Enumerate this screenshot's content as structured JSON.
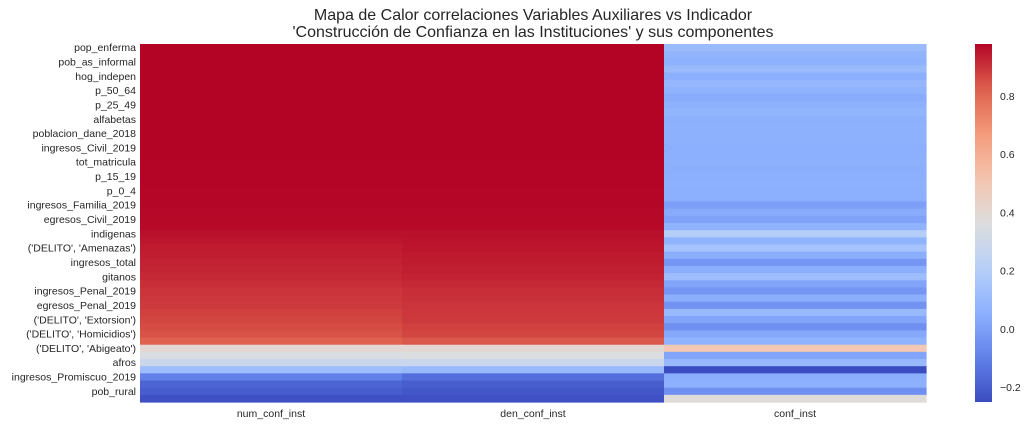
{
  "chart_data": {
    "type": "heatmap",
    "title": "Mapa de Calor correlaciones Variables Auxiliares vs Indicador",
    "subtitle": "'Construcción de Confianza en las Instituciones' y sus componentes",
    "columns": [
      "num_conf_inst",
      "den_conf_inst",
      "conf_inst"
    ],
    "row_tick_labels": [
      "pop_enferma",
      "pob_as_informal",
      "hog_indepen",
      "p_50_64",
      "p_25_49",
      "alfabetas",
      "poblacion_dane_2018",
      "ingresos_Civil_2019",
      "tot_matricula",
      "p_15_19",
      "p_0_4",
      "ingresos_Familia_2019",
      "egresos_Civil_2019",
      "indigenas",
      "('DELITO', 'Amenazas')",
      "ingresos_total",
      "gitanos",
      "ingresos_Penal_2019",
      "egresos_Penal_2019",
      "('DELITO', 'Extorsion')",
      "('DELITO', 'Homicidios')",
      "('DELITO', 'Abigeato')",
      "afros",
      "ingresos_Promiscuo_2019",
      "pob_rural"
    ],
    "rows": [
      {
        "label": "pop_enferma",
        "values": [
          0.985,
          0.985,
          0.105
        ]
      },
      {
        "label": "",
        "values": [
          0.985,
          0.985,
          0.075
        ]
      },
      {
        "label": "pob_as_informal",
        "values": [
          0.984,
          0.984,
          0.065
        ]
      },
      {
        "label": "",
        "values": [
          0.984,
          0.984,
          0.105
        ]
      },
      {
        "label": "hog_indepen",
        "values": [
          0.984,
          0.984,
          0.055
        ]
      },
      {
        "label": "",
        "values": [
          0.983,
          0.983,
          0.09
        ]
      },
      {
        "label": "p_50_64",
        "values": [
          0.983,
          0.983,
          0.07
        ]
      },
      {
        "label": "",
        "values": [
          0.983,
          0.983,
          0.045
        ]
      },
      {
        "label": "p_25_49",
        "values": [
          0.982,
          0.982,
          0.06
        ]
      },
      {
        "label": "",
        "values": [
          0.982,
          0.982,
          0.08
        ]
      },
      {
        "label": "alfabetas",
        "values": [
          0.982,
          0.982,
          0.06
        ]
      },
      {
        "label": "",
        "values": [
          0.981,
          0.981,
          0.065
        ]
      },
      {
        "label": "poblacion_dane_2018",
        "values": [
          0.981,
          0.981,
          0.06
        ]
      },
      {
        "label": "",
        "values": [
          0.981,
          0.981,
          0.06
        ]
      },
      {
        "label": "ingresos_Civil_2019",
        "values": [
          0.98,
          0.98,
          0.05
        ]
      },
      {
        "label": "",
        "values": [
          0.98,
          0.98,
          0.055
        ]
      },
      {
        "label": "tot_matricula",
        "values": [
          0.979,
          0.979,
          0.06
        ]
      },
      {
        "label": "",
        "values": [
          0.979,
          0.979,
          0.05
        ]
      },
      {
        "label": "p_15_19",
        "values": [
          0.978,
          0.978,
          0.055
        ]
      },
      {
        "label": "",
        "values": [
          0.978,
          0.978,
          0.06
        ]
      },
      {
        "label": "p_0_4",
        "values": [
          0.977,
          0.977,
          0.055
        ]
      },
      {
        "label": "",
        "values": [
          0.976,
          0.976,
          0.05
        ]
      },
      {
        "label": "ingresos_Familia_2019",
        "values": [
          0.975,
          0.975,
          0.0
        ]
      },
      {
        "label": "",
        "values": [
          0.974,
          0.974,
          0.04
        ]
      },
      {
        "label": "egresos_Civil_2019",
        "values": [
          0.972,
          0.972,
          0.01
        ]
      },
      {
        "label": "",
        "values": [
          0.97,
          0.97,
          0.07
        ]
      },
      {
        "label": "indigenas",
        "values": [
          0.96,
          0.96,
          0.2
        ]
      },
      {
        "label": "",
        "values": [
          0.95,
          0.955,
          0.07
        ]
      },
      {
        "label": "('DELITO', 'Amenazas')",
        "values": [
          0.94,
          0.95,
          0.15
        ]
      },
      {
        "label": "",
        "values": [
          0.935,
          0.945,
          0.05
        ]
      },
      {
        "label": "ingresos_total",
        "values": [
          0.93,
          0.94,
          -0.03
        ]
      },
      {
        "label": "",
        "values": [
          0.925,
          0.935,
          0.05
        ]
      },
      {
        "label": "gitanos",
        "values": [
          0.92,
          0.93,
          0.12
        ]
      },
      {
        "label": "",
        "values": [
          0.91,
          0.92,
          0.02
        ]
      },
      {
        "label": "ingresos_Penal_2019",
        "values": [
          0.9,
          0.91,
          -0.03
        ]
      },
      {
        "label": "",
        "values": [
          0.895,
          0.905,
          0.05
        ]
      },
      {
        "label": "egresos_Penal_2019",
        "values": [
          0.89,
          0.9,
          -0.04
        ]
      },
      {
        "label": "",
        "values": [
          0.88,
          0.895,
          0.1
        ]
      },
      {
        "label": "('DELITO', 'Extorsion')",
        "values": [
          0.87,
          0.89,
          0.02
        ]
      },
      {
        "label": "",
        "values": [
          0.86,
          0.88,
          -0.05
        ]
      },
      {
        "label": "('DELITO', 'Homicidios')",
        "values": [
          0.85,
          0.87,
          0.03
        ]
      },
      {
        "label": "",
        "values": [
          0.82,
          0.84,
          0.07
        ]
      },
      {
        "label": "('DELITO', 'Abigeato')",
        "values": [
          0.4,
          0.4,
          0.5
        ]
      },
      {
        "label": "",
        "values": [
          0.35,
          0.36,
          0.02
        ]
      },
      {
        "label": "afros",
        "values": [
          0.28,
          0.28,
          0.1
        ]
      },
      {
        "label": "",
        "values": [
          0.12,
          0.1,
          -0.25
        ]
      },
      {
        "label": "ingresos_Promiscuo_2019",
        "values": [
          -0.1,
          -0.15,
          0.05
        ]
      },
      {
        "label": "",
        "values": [
          -0.18,
          -0.2,
          0.06
        ]
      },
      {
        "label": "pob_rural",
        "values": [
          -0.2,
          -0.22,
          -0.05
        ]
      },
      {
        "label": "",
        "values": [
          -0.24,
          -0.24,
          0.38
        ]
      }
    ],
    "colormap": "coolwarm",
    "vmin": -0.25,
    "vmax": 0.98,
    "colorbar_ticks": [
      0.8,
      0.6,
      0.4,
      0.2,
      0.0,
      -0.2
    ],
    "colorbar_tick_labels": [
      "0.8",
      "0.6",
      "0.4",
      "0.2",
      "0.0",
      "−0.2"
    ]
  }
}
